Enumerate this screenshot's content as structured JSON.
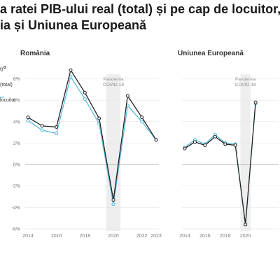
{
  "title_lines": [
    "a ratei PIB-ului real (total) și pe cap de locuitor, volu",
    "ia și Uniunea Europeană"
  ],
  "colors": {
    "total": "#222222",
    "per_capita": "#4fb8dc",
    "pandemic_band": "#eeeeee",
    "gridline": "#e6e6e6",
    "zero_line": "#aaaaaa"
  },
  "chart_data": [
    {
      "type": "line",
      "title": "România",
      "annotation": "Pandemia COVID-19",
      "x": [
        2014,
        2015,
        2016,
        2017,
        2018,
        2019,
        2020,
        2021,
        2022,
        2023
      ],
      "x_tick_labels": [
        "2014",
        "2016",
        "2018",
        "2020",
        "2022",
        "2023"
      ],
      "y_tick_labels": [
        "-6%",
        "-4%",
        "-2%",
        "0%",
        "2%",
        "4%",
        "6%",
        "8%"
      ],
      "ylim": [
        -6.2,
        9.6
      ],
      "legend_fragments": [
        "t)",
        "(total)",
        "locuitor"
      ],
      "series": [
        {
          "values": [
            4.4,
            3.6,
            3.5,
            8.8,
            6.7,
            4.3,
            -3.3,
            6.4,
            4.4,
            2.3
          ]
        },
        {
          "values": [
            4.1,
            3.2,
            2.9,
            8.2,
            6.1,
            3.8,
            -3.7,
            5.5,
            4.0,
            2.3
          ]
        }
      ]
    },
    {
      "type": "line",
      "title": "Uniunea Europeană",
      "annotation": "Pandemia COVID-19",
      "x": [
        2014,
        2015,
        2016,
        2017,
        2018,
        2019,
        2020,
        2021
      ],
      "x_tick_labels": [
        "2014",
        "2016",
        "2018",
        "2020"
      ],
      "ylim": [
        -6.2,
        9.6
      ],
      "series": [
        {
          "values": [
            1.5,
            2.1,
            1.8,
            2.6,
            1.9,
            1.8,
            -5.6,
            5.8
          ]
        },
        {
          "values": [
            1.6,
            2.3,
            1.9,
            2.8,
            2.0,
            1.9,
            -5.6,
            5.7
          ]
        }
      ]
    }
  ]
}
